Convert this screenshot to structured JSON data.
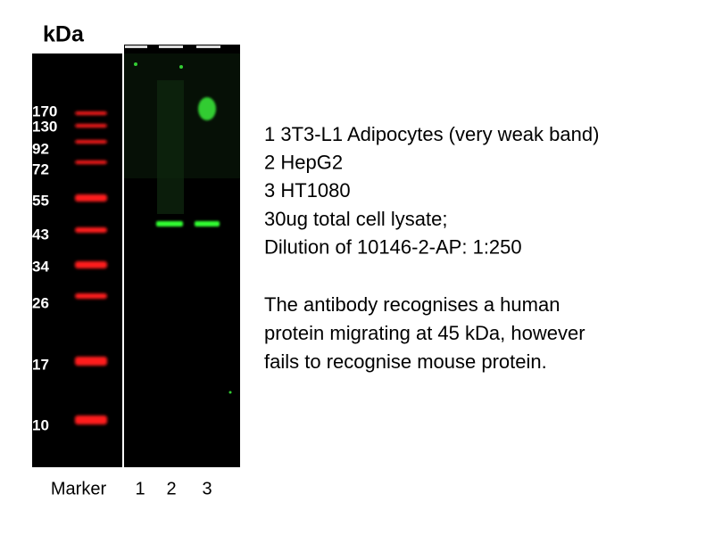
{
  "unit_label": "kDa",
  "marker_labels": [
    "170",
    "130",
    "92",
    "72",
    "55",
    "43",
    "34",
    "26",
    "17",
    "10"
  ],
  "lane_labels": [
    "Marker",
    "1",
    "2",
    "3"
  ],
  "legend_lines": [
    "1 3T3-L1 Adipocytes (very weak band)",
    "2 HepG2",
    "3 HT1080",
    "30ug total cell lysate;",
    "Dilution of 10146-2-AP: 1:250"
  ],
  "note_lines": [
    "The antibody recognises a human",
    "protein migrating at 45 kDa, however",
    "fails to recognise mouse protein."
  ]
}
